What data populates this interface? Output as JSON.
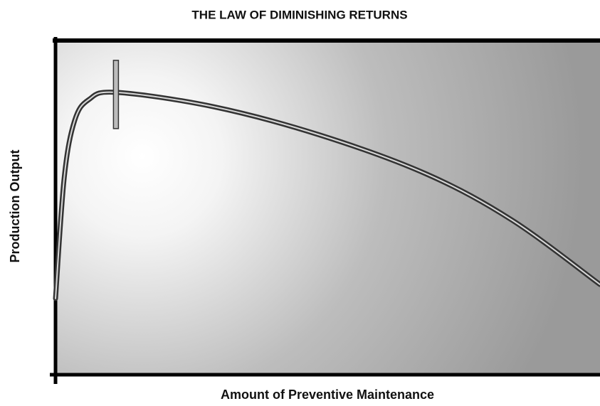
{
  "chart_data": {
    "type": "line",
    "title": "THE LAW OF DIMINISHING RETURNS",
    "x_label": "Amount of Preventive Maintenance",
    "y_label": "Production Output",
    "x": [
      0,
      1.6,
      3.5,
      6.1,
      11.1,
      29,
      48.6,
      68.2,
      83.9,
      100
    ],
    "series": [
      {
        "color": "#333333",
        "values": [
          22.8,
          59,
          76,
          82.3,
          84.5,
          80.2,
          71.7,
          60,
          46.2,
          27
        ]
      }
    ],
    "xlim": [
      0,
      100
    ],
    "ylim": [
      0,
      100
    ]
  }
}
